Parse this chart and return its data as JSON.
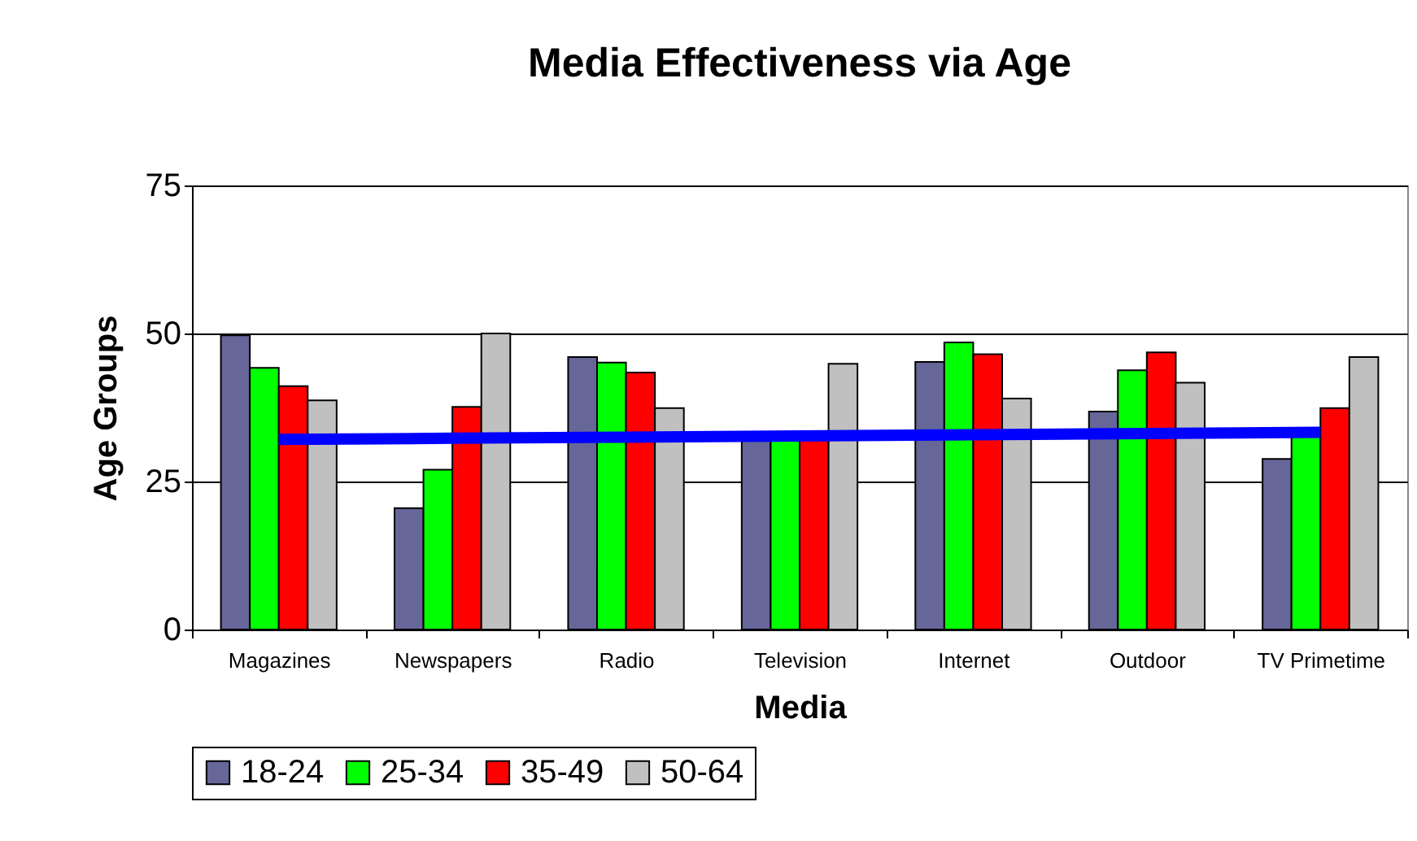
{
  "chart_data": {
    "type": "bar",
    "title": "Media Effectiveness via Age",
    "xlabel": "Media",
    "ylabel": "Age Groups",
    "categories": [
      "Magazines",
      "Newspapers",
      "Radio",
      "Television",
      "Internet",
      "Outdoor",
      "TV Primetime"
    ],
    "series": [
      {
        "name": "18-24",
        "color": "#666699",
        "values": [
          49.7,
          20.5,
          46,
          32,
          45.2,
          36.8,
          28.8
        ]
      },
      {
        "name": "25-34",
        "color": "#00ff00",
        "values": [
          44.2,
          27,
          45.1,
          32,
          48.5,
          43.8,
          33
        ]
      },
      {
        "name": "35-49",
        "color": "#ff0000",
        "values": [
          41.1,
          37.6,
          43.4,
          32,
          46.5,
          46.8,
          37.4
        ]
      },
      {
        "name": "50-64",
        "color": "#c0c0c0",
        "values": [
          38.7,
          50,
          37.4,
          44.9,
          39,
          41.7,
          46
        ]
      },
      {
        "type": "line",
        "color": "#0000ff",
        "values": [
          32.1,
          32.3,
          32.5,
          32.7,
          32.9,
          33.1,
          33.3
        ]
      }
    ],
    "ylim": [
      0,
      75
    ],
    "yticks": [
      0,
      25,
      50,
      75
    ],
    "grid": "y",
    "legend": "bottom"
  }
}
